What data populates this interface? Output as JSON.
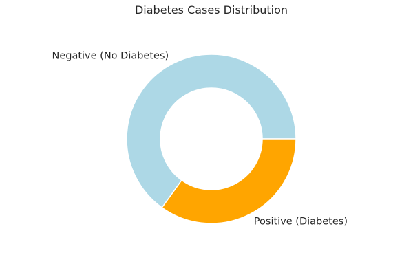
{
  "chart_data": {
    "type": "pie",
    "donut": true,
    "title": "Diabetes Cases Distribution",
    "labels": [
      "Negative (No Diabetes)",
      "Positive (Diabetes)"
    ],
    "values": [
      65.1,
      34.9
    ],
    "colors": [
      "#add8e6",
      "#ffa500"
    ],
    "start_angle_deg": 0,
    "direction": "counterclockwise",
    "edge_color": "#ffffff",
    "legend": "none"
  }
}
